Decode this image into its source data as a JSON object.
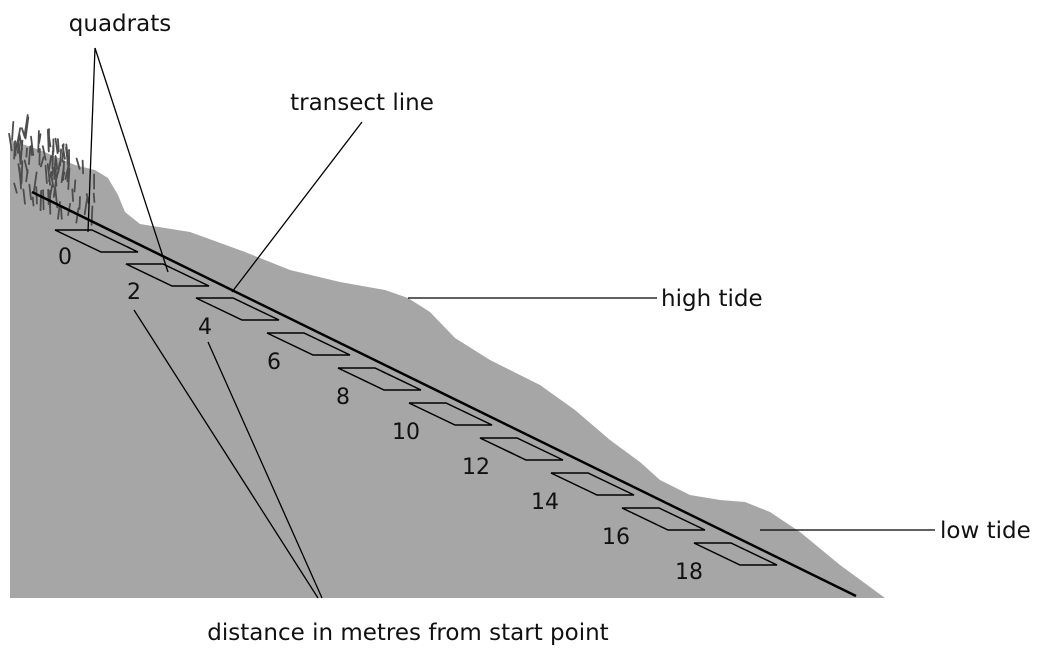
{
  "labels": {
    "quadrats": "quadrats",
    "transect_line": "transect line",
    "high_tide": "high tide",
    "low_tide": "low tide",
    "distance": "distance in metres from start point"
  },
  "distances": [
    "0",
    "2",
    "4",
    "6",
    "8",
    "10",
    "12",
    "14",
    "16",
    "18"
  ],
  "colors": {
    "ground": "#a6a6a6",
    "line": "#000000",
    "grass": "#4d4d4d"
  }
}
